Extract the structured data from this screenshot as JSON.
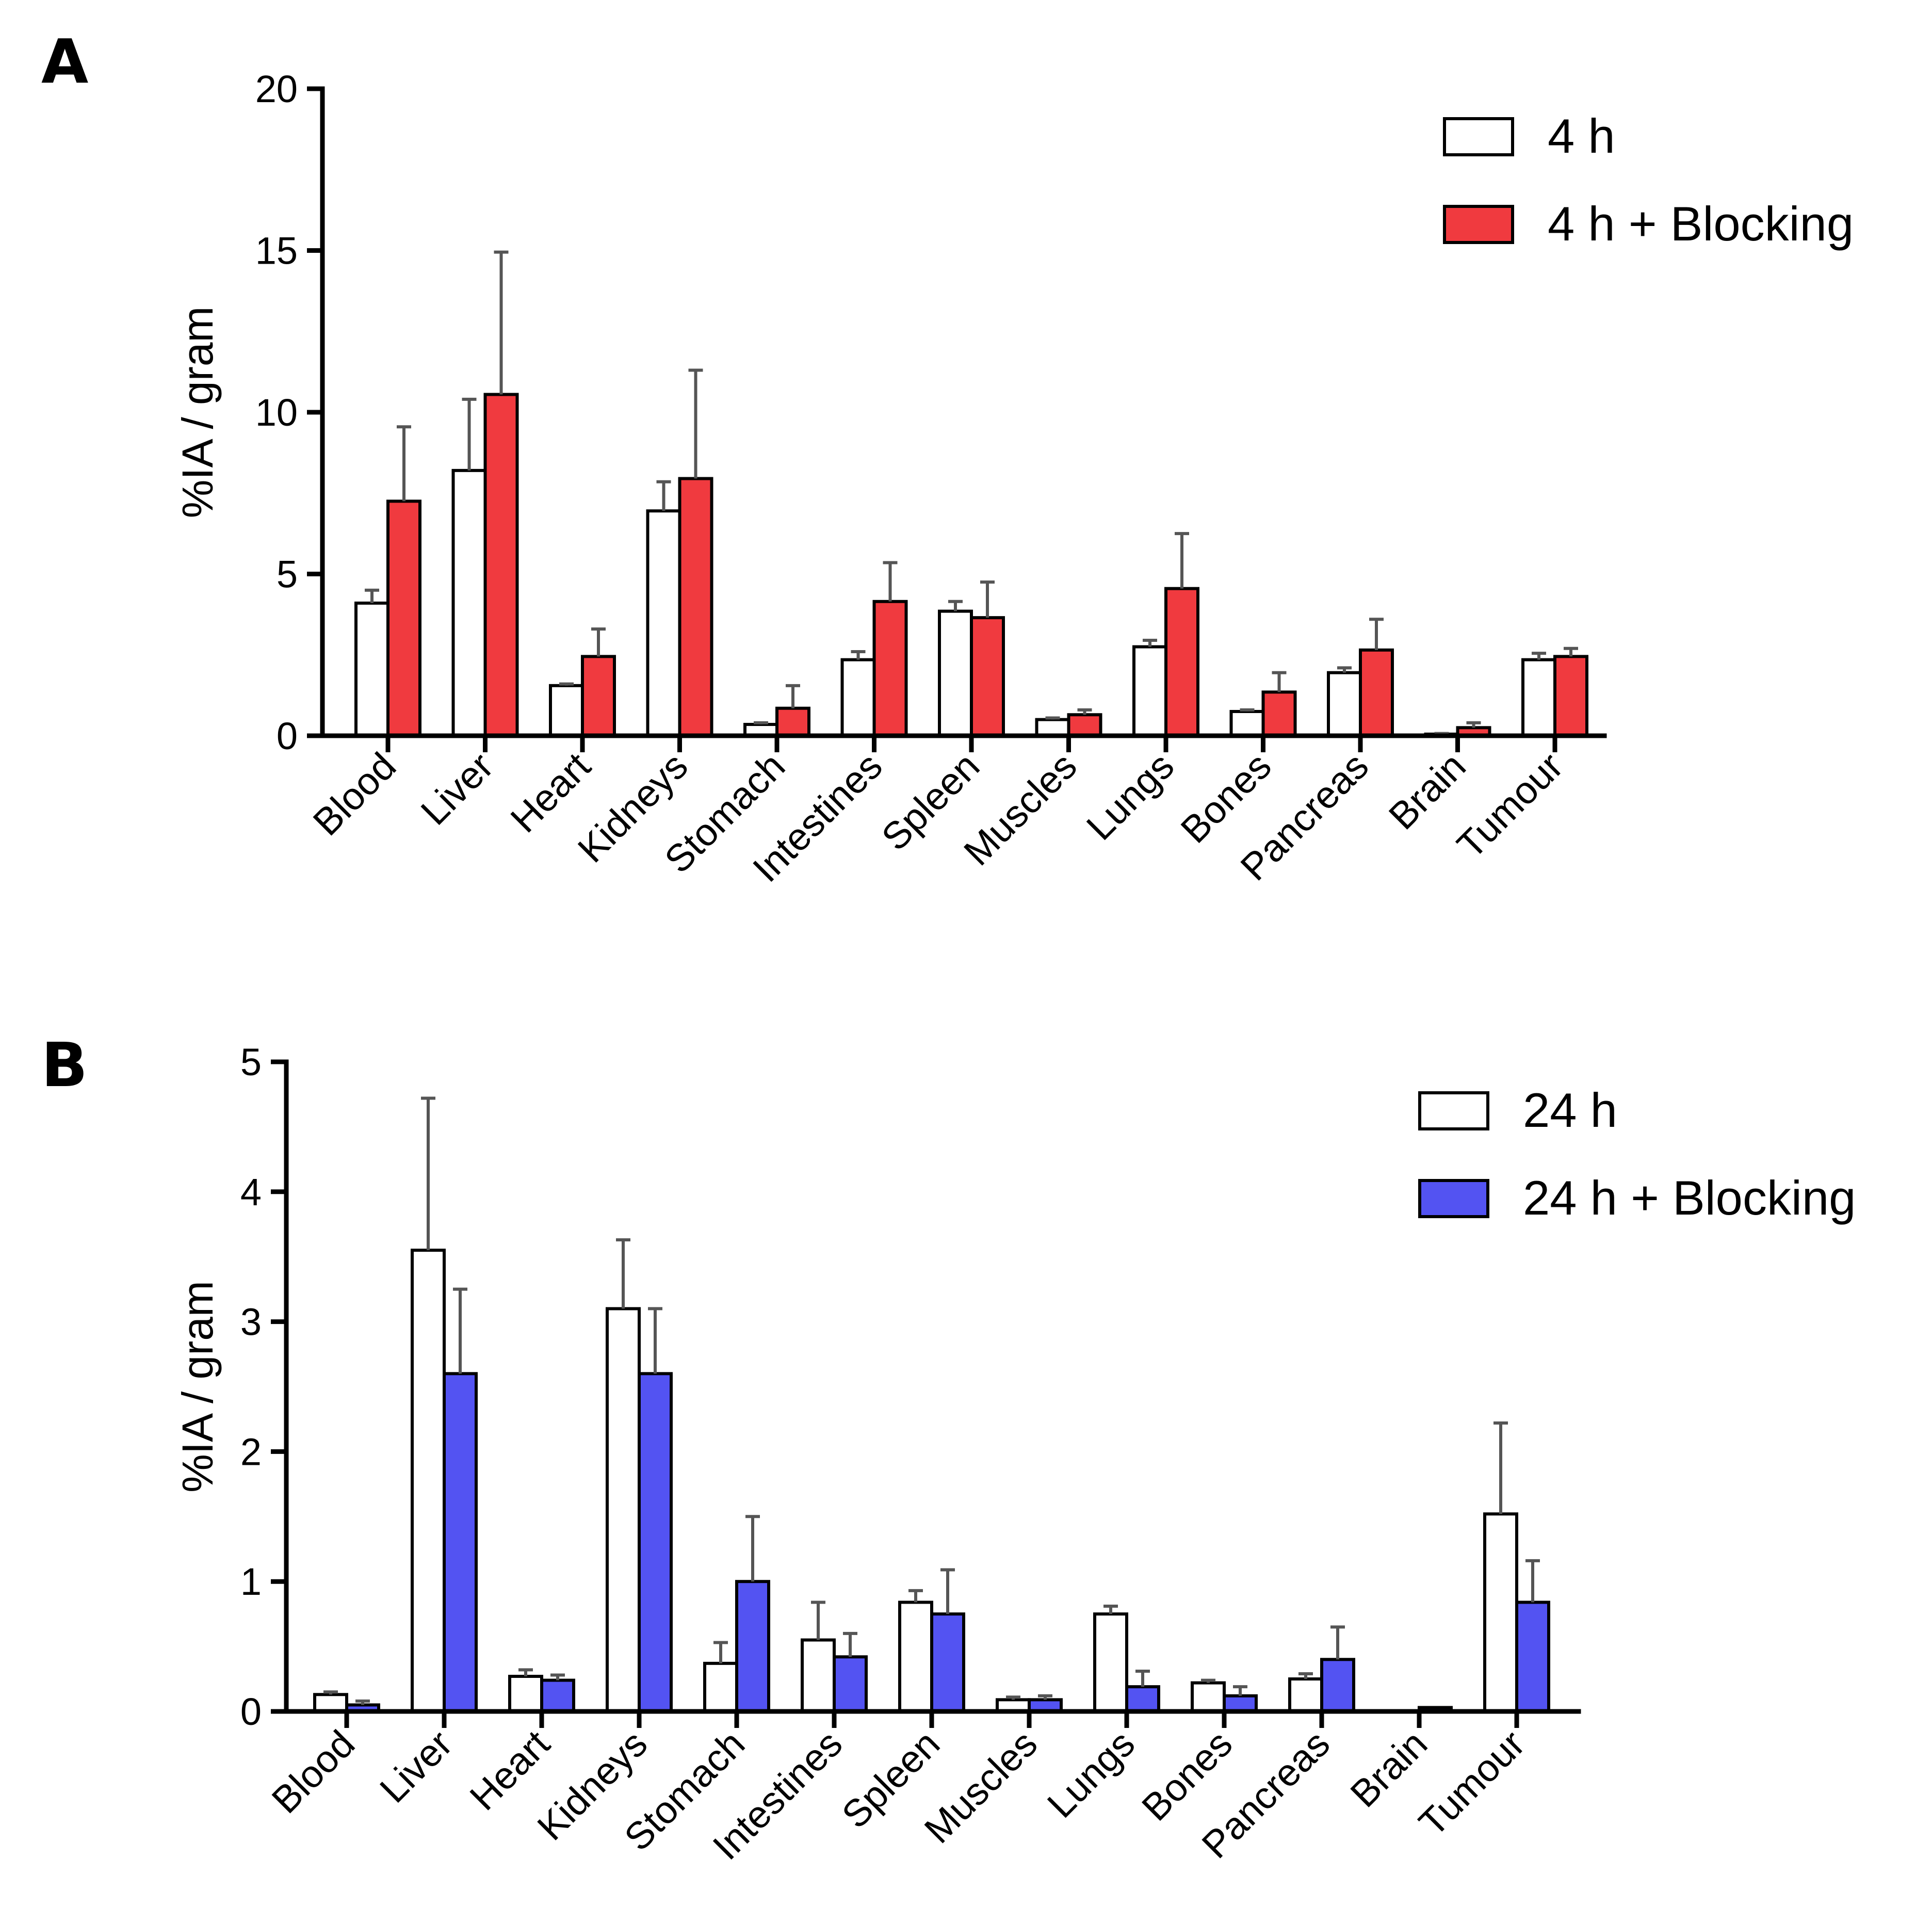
{
  "chart_data": [
    {
      "type": "bar",
      "panel": "A",
      "ylabel": "%IA / gram",
      "ylim": [
        0,
        20
      ],
      "yticks": [
        0,
        5,
        10,
        15,
        20
      ],
      "legend_position": "top-right",
      "categories": [
        "Blood",
        "Liver",
        "Heart",
        "Kidneys",
        "Stomach",
        "Intestines",
        "Spleen",
        "Muscles",
        "Lungs",
        "Bones",
        "Pancreas",
        "Brain",
        "Tumour"
      ],
      "series": [
        {
          "name": "4 h",
          "color": "#ffffff",
          "values": [
            4.1,
            8.2,
            1.55,
            6.95,
            0.35,
            2.35,
            3.85,
            0.5,
            2.75,
            0.75,
            1.95,
            0.05,
            2.35
          ],
          "errors": [
            0.4,
            2.2,
            0.05,
            0.9,
            0.05,
            0.25,
            0.3,
            0.05,
            0.2,
            0.05,
            0.15,
            0.02,
            0.2
          ]
        },
        {
          "name": "4 h + Blocking",
          "color": "#f03a3f",
          "values": [
            7.25,
            10.55,
            2.45,
            7.95,
            0.85,
            4.15,
            3.65,
            0.65,
            4.55,
            1.35,
            2.65,
            0.25,
            2.45
          ],
          "errors": [
            2.3,
            4.4,
            0.85,
            3.35,
            0.7,
            1.2,
            1.1,
            0.15,
            1.7,
            0.6,
            0.95,
            0.15,
            0.25
          ]
        }
      ]
    },
    {
      "type": "bar",
      "panel": "B",
      "ylabel": "%IA / gram",
      "ylim": [
        0,
        5
      ],
      "yticks": [
        0,
        1,
        2,
        3,
        4,
        5
      ],
      "legend_position": "top-right",
      "categories": [
        "Blood",
        "Liver",
        "Heart",
        "Kidneys",
        "Stomach",
        "Intestines",
        "Spleen",
        "Muscles",
        "Lungs",
        "Bones",
        "Pancreas",
        "Brain",
        "Tumour"
      ],
      "series": [
        {
          "name": "24 h",
          "color": "#ffffff",
          "values": [
            0.13,
            3.55,
            0.27,
            3.1,
            0.37,
            0.55,
            0.84,
            0.09,
            0.75,
            0.22,
            0.25,
            0.0,
            1.52
          ],
          "errors": [
            0.02,
            1.17,
            0.05,
            0.53,
            0.16,
            0.29,
            0.09,
            0.02,
            0.06,
            0.02,
            0.04,
            0.0,
            0.7
          ]
        },
        {
          "name": "24 h + Blocking",
          "color": "#5353f2",
          "values": [
            0.05,
            2.6,
            0.24,
            2.6,
            1.0,
            0.42,
            0.75,
            0.09,
            0.19,
            0.12,
            0.4,
            0.03,
            0.84
          ],
          "errors": [
            0.03,
            0.65,
            0.04,
            0.5,
            0.5,
            0.18,
            0.34,
            0.03,
            0.12,
            0.07,
            0.25,
            0.0,
            0.32
          ]
        }
      ]
    }
  ]
}
